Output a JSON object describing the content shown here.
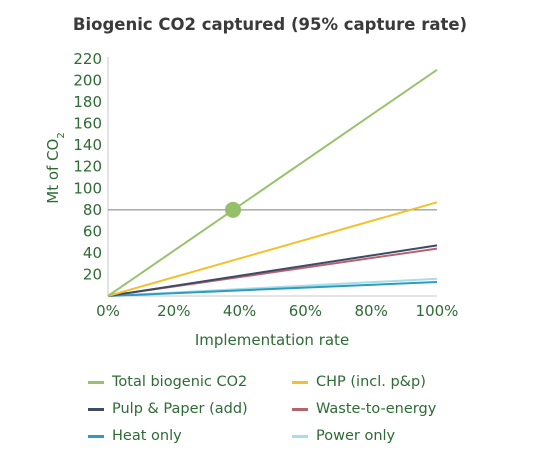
{
  "chart_data": {
    "type": "line",
    "title": "Biogenic CO2 captured (95% capture rate)",
    "xlabel": "Implementation rate",
    "ylabel_main": "Mt of CO",
    "ylabel_sub": "2",
    "x": [
      0,
      100
    ],
    "x_ticks": [
      "0%",
      "20%",
      "40%",
      "60%",
      "80%",
      "100%"
    ],
    "xlim": [
      0,
      100
    ],
    "ylim": [
      0,
      220
    ],
    "y_ticks": [
      20,
      40,
      60,
      80,
      100,
      120,
      140,
      160,
      180,
      200,
      220
    ],
    "reference_line": {
      "y": 80
    },
    "marker": {
      "x": 38,
      "y": 80,
      "color": "#94bf6b"
    },
    "series": [
      {
        "name": "Total biogenic CO2",
        "values": [
          0,
          210
        ],
        "color": "#9ac26e"
      },
      {
        "name": "CHP (incl. p&p)",
        "values": [
          0,
          87
        ],
        "color": "#f2c12e"
      },
      {
        "name": "Pulp & Paper (add)",
        "values": [
          0,
          47
        ],
        "color": "#3f4a66"
      },
      {
        "name": "Waste-to-energy",
        "values": [
          0,
          44
        ],
        "color": "#b5636e"
      },
      {
        "name": "Heat only",
        "values": [
          0,
          13
        ],
        "color": "#2a9dc0"
      },
      {
        "name": "Power only",
        "values": [
          0,
          16
        ],
        "color": "#a7dce8"
      }
    ],
    "legend_position": "bottom"
  }
}
